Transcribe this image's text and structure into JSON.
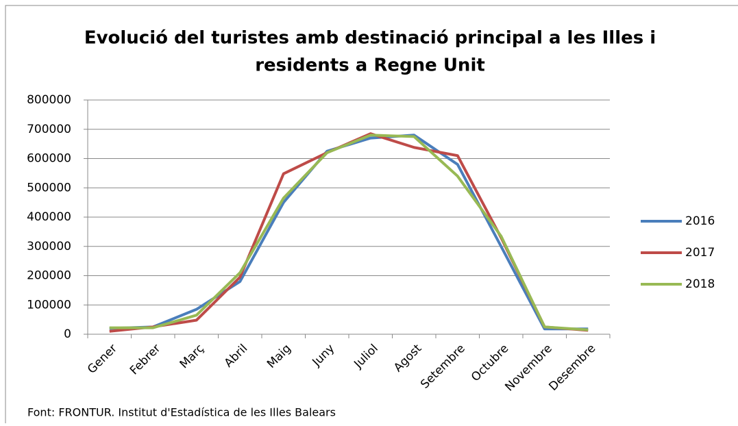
{
  "chart_data": {
    "type": "line",
    "title": "Evolució del turistes amb destinació principal a les Illes i residents a Regne Unit",
    "categories": [
      "Gener",
      "Febrer",
      "Març",
      "Abril",
      "Maig",
      "Juny",
      "Juliol",
      "Agost",
      "Setembre",
      "Octubre",
      "Novembre",
      "Desembre"
    ],
    "series": [
      {
        "name": "2016",
        "color": "#4a7ebb",
        "values": [
          20000,
          25000,
          85000,
          180000,
          450000,
          625000,
          670000,
          680000,
          580000,
          300000,
          18000,
          18000
        ]
      },
      {
        "name": "2017",
        "color": "#be4b48",
        "values": [
          10000,
          25000,
          48000,
          195000,
          548000,
          620000,
          685000,
          638000,
          610000,
          330000,
          25000,
          13000
        ]
      },
      {
        "name": "2018",
        "color": "#98b954",
        "values": [
          22000,
          22000,
          65000,
          210000,
          465000,
          620000,
          680000,
          675000,
          540000,
          335000,
          25000,
          15000
        ]
      }
    ],
    "ylim": [
      0,
      800000
    ],
    "yticks": [
      0,
      100000,
      200000,
      300000,
      400000,
      500000,
      600000,
      700000,
      800000
    ],
    "grid": true,
    "legend": "right",
    "annotation": "Font: FRONTUR. Institut d'Estadística de les Illes Balears"
  }
}
